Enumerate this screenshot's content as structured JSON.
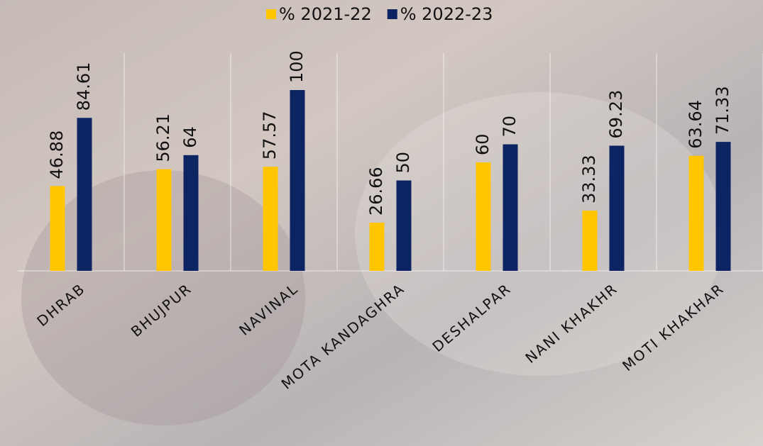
{
  "chart_data": {
    "type": "bar",
    "categories": [
      "DHRAB",
      "BHUJPUR",
      "NAVINAL",
      "MOTA KANDAGHRA",
      "DESHALPAR",
      "NANI KHAKHR",
      "MOTI KHAKHAR"
    ],
    "series": [
      {
        "name": "% 2021-22",
        "color": "#ffc600",
        "values": [
          46.88,
          56.21,
          57.57,
          26.66,
          60,
          33.33,
          63.64
        ]
      },
      {
        "name": "% 2022-23",
        "color": "#0c2461",
        "values": [
          84.61,
          64,
          100,
          50,
          70,
          69.23,
          71.33
        ]
      }
    ],
    "ylim": [
      0,
      100
    ],
    "grid": true,
    "legend": "top"
  }
}
